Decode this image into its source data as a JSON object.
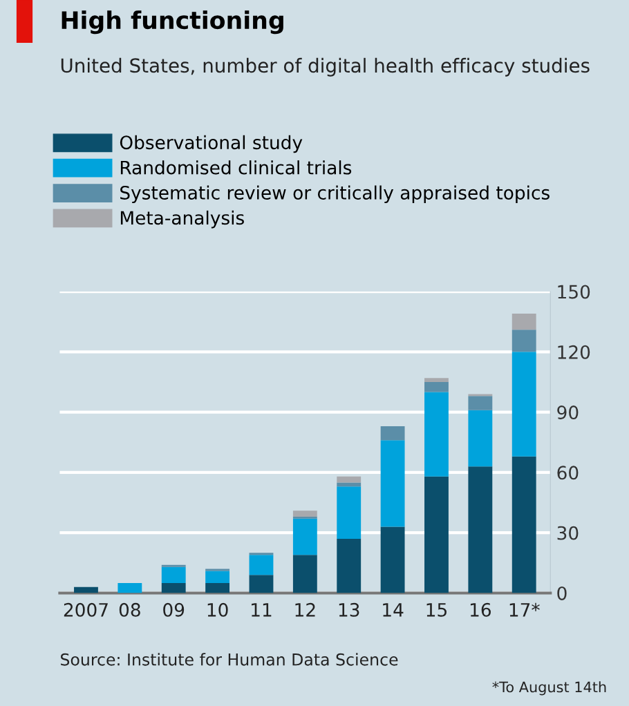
{
  "chart_data": {
    "type": "bar",
    "title": "High functioning",
    "subtitle": "United States, number of digital health efficacy studies",
    "categories": [
      "2007",
      "08",
      "09",
      "10",
      "11",
      "12",
      "13",
      "14",
      "15",
      "16",
      "17*"
    ],
    "stacked": true,
    "series": [
      {
        "name": "Observational study",
        "color": "#0b4f6c",
        "values": [
          3,
          0,
          5,
          5,
          9,
          19,
          27,
          33,
          58,
          63,
          68
        ]
      },
      {
        "name": "Randomised clinical trials",
        "color": "#00a3dc",
        "values": [
          0,
          5,
          8,
          6,
          10,
          18,
          26,
          43,
          42,
          28,
          52
        ]
      },
      {
        "name": "Systematic review or critically appraised topics",
        "color": "#5b8ea8",
        "values": [
          0,
          0,
          1,
          1,
          1,
          1,
          2,
          7,
          5,
          7,
          11
        ]
      },
      {
        "name": "Meta-analysis",
        "color": "#a8a9ad",
        "values": [
          0,
          0,
          0,
          0,
          0,
          3,
          3,
          0,
          2,
          1,
          8
        ]
      }
    ],
    "ylim": [
      0,
      150
    ],
    "yticks": [
      0,
      30,
      60,
      90,
      120,
      150
    ],
    "grid": "y",
    "legend": "top left",
    "annotations": [
      "Source: Institute for Human Data Science",
      "*To August 14th"
    ]
  }
}
